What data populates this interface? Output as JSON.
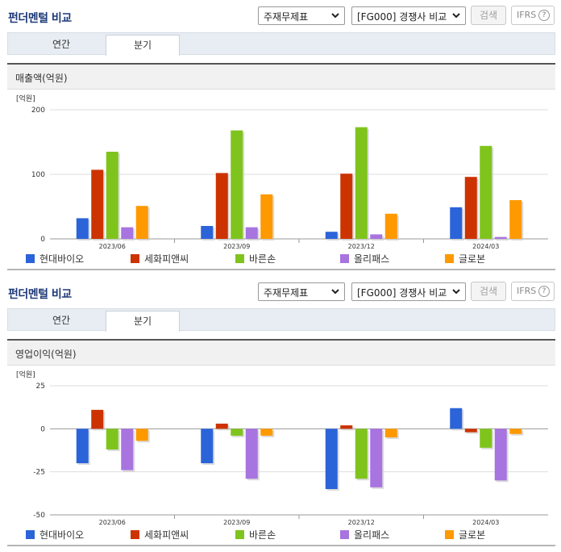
{
  "colors": {
    "title": "#1f3a78",
    "series": [
      "#2b63d9",
      "#cc3300",
      "#7fc41c",
      "#a874e0",
      "#ff9900"
    ]
  },
  "panels": [
    {
      "title": "펀더멘털 비교",
      "select_statement": "주재무제표",
      "select_peer": "[FG000] 경쟁사 비교",
      "search_label": "검색",
      "ifrs_label": "IFRS",
      "help_label": "?",
      "tabs": [
        "연간",
        "분기"
      ],
      "active_tab": "분기",
      "section_title": "매출액(억원)",
      "unit_label": "[억원]",
      "legend": [
        "현대바이오",
        "세화피앤씨",
        "바른손",
        "올리패스",
        "글로본"
      ]
    },
    {
      "title": "펀더멘털 비교",
      "select_statement": "주재무제표",
      "select_peer": "[FG000] 경쟁사 비교",
      "search_label": "검색",
      "ifrs_label": "IFRS",
      "help_label": "?",
      "tabs": [
        "연간",
        "분기"
      ],
      "active_tab": "분기",
      "section_title": "영업이익(억원)",
      "unit_label": "[억원]",
      "legend": [
        "현대바이오",
        "세화피앤씨",
        "바른손",
        "올리패스",
        "글로본"
      ]
    }
  ],
  "chart_data": [
    {
      "type": "bar",
      "title": "매출액(억원)",
      "ylabel": "[억원]",
      "categories": [
        "2023/06",
        "2023/09",
        "2023/12",
        "2024/03"
      ],
      "ylim": [
        0,
        200
      ],
      "yticks": [
        0,
        100,
        200
      ],
      "grid": true,
      "legend_position": "bottom",
      "series": [
        {
          "name": "현대바이오",
          "values": [
            32,
            20,
            11,
            49
          ]
        },
        {
          "name": "세화피앤씨",
          "values": [
            107,
            102,
            101,
            96
          ]
        },
        {
          "name": "바른손",
          "values": [
            135,
            168,
            173,
            144
          ]
        },
        {
          "name": "올리패스",
          "values": [
            18,
            18,
            7,
            3
          ]
        },
        {
          "name": "글로본",
          "values": [
            51,
            69,
            39,
            60
          ]
        }
      ]
    },
    {
      "type": "bar",
      "title": "영업이익(억원)",
      "ylabel": "[억원]",
      "categories": [
        "2023/06",
        "2023/09",
        "2023/12",
        "2024/03"
      ],
      "ylim": [
        -50,
        25
      ],
      "yticks": [
        -50,
        -25,
        0,
        25
      ],
      "grid": true,
      "legend_position": "bottom",
      "series": [
        {
          "name": "현대바이오",
          "values": [
            -20,
            -20,
            -35,
            12
          ]
        },
        {
          "name": "세화피앤씨",
          "values": [
            11,
            3,
            2,
            -2
          ]
        },
        {
          "name": "바른손",
          "values": [
            -12,
            -4,
            -29,
            -11
          ]
        },
        {
          "name": "올리패스",
          "values": [
            -24,
            -29,
            -34,
            -30
          ]
        },
        {
          "name": "글로본",
          "values": [
            -7,
            -4,
            -5,
            -3
          ]
        }
      ]
    }
  ]
}
